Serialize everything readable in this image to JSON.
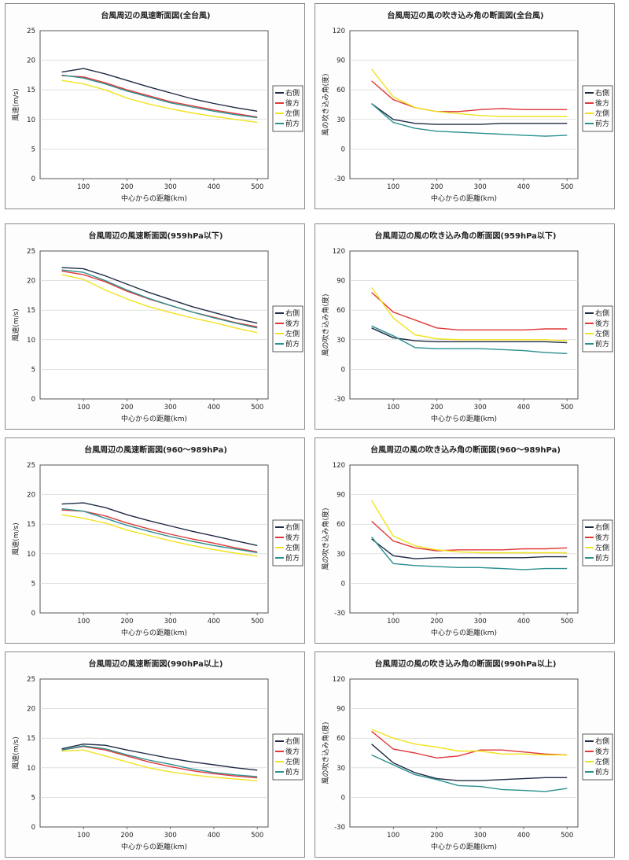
{
  "colors": {
    "right_side": "#1f2a44",
    "rear": "#e03838",
    "left_side": "#f2e21e",
    "front": "#2a8f8f"
  },
  "chart_data": [
    {
      "type": "line",
      "title": "台風周辺の風速断面図(全台風)",
      "xlabel": "中心からの距離(km)",
      "ylabel": "風速(m/s)",
      "ylim": [
        0,
        25
      ],
      "yticks": [
        0,
        5,
        10,
        15,
        20,
        25
      ],
      "xlim": [
        0,
        525
      ],
      "xticks": [
        100,
        200,
        300,
        400,
        500
      ],
      "legend_position": "right",
      "series": [
        {
          "name": "右側",
          "color": "#1f2a44",
          "x": [
            50,
            100,
            150,
            200,
            250,
            300,
            350,
            400,
            450,
            500
          ],
          "values": [
            18.0,
            18.6,
            17.7,
            16.6,
            15.5,
            14.5,
            13.5,
            12.7,
            12.0,
            11.4
          ]
        },
        {
          "name": "後方",
          "color": "#e03838",
          "x": [
            50,
            100,
            150,
            200,
            250,
            300,
            350,
            400,
            450,
            500
          ],
          "values": [
            17.4,
            17.2,
            16.2,
            15.0,
            14.0,
            13.0,
            12.3,
            11.6,
            11.0,
            10.4
          ]
        },
        {
          "name": "左側",
          "color": "#f2e21e",
          "x": [
            50,
            100,
            150,
            200,
            250,
            300,
            350,
            400,
            450,
            500
          ],
          "values": [
            16.6,
            16.0,
            15.0,
            13.6,
            12.6,
            11.8,
            11.1,
            10.5,
            10.0,
            9.5
          ]
        },
        {
          "name": "前方",
          "color": "#2a8f8f",
          "x": [
            50,
            100,
            150,
            200,
            250,
            300,
            350,
            400,
            450,
            500
          ],
          "values": [
            17.5,
            17.0,
            16.0,
            14.8,
            13.8,
            12.8,
            12.1,
            11.4,
            10.8,
            10.3
          ]
        }
      ]
    },
    {
      "type": "line",
      "title": "台風周辺の風の吹き込み角の断面図(全台風)",
      "xlabel": "中心からの距離(km)",
      "ylabel": "風の吹き込み角(度)",
      "ylim": [
        -30,
        120
      ],
      "yticks": [
        -30,
        0,
        30,
        60,
        90,
        120
      ],
      "xlim": [
        0,
        525
      ],
      "xticks": [
        100,
        200,
        300,
        400,
        500
      ],
      "legend_position": "right",
      "series": [
        {
          "name": "右側",
          "color": "#1f2a44",
          "x": [
            50,
            100,
            150,
            200,
            250,
            300,
            350,
            400,
            450,
            500
          ],
          "values": [
            46,
            30,
            26,
            25,
            25,
            25,
            26,
            26,
            26,
            26
          ]
        },
        {
          "name": "後方",
          "color": "#e03838",
          "x": [
            50,
            100,
            150,
            200,
            250,
            300,
            350,
            400,
            450,
            500
          ],
          "values": [
            69,
            50,
            42,
            38,
            38,
            40,
            41,
            40,
            40,
            40
          ]
        },
        {
          "name": "左側",
          "color": "#f2e21e",
          "x": [
            50,
            100,
            150,
            200,
            250,
            300,
            350,
            400,
            450,
            500
          ],
          "values": [
            81,
            53,
            42,
            38,
            36,
            34,
            33,
            33,
            33,
            33
          ]
        },
        {
          "name": "前方",
          "color": "#2a8f8f",
          "x": [
            50,
            100,
            150,
            200,
            250,
            300,
            350,
            400,
            450,
            500
          ],
          "values": [
            46,
            27,
            21,
            18,
            17,
            16,
            15,
            14,
            13,
            14
          ]
        }
      ]
    },
    {
      "type": "line",
      "title": "台風周辺の風速断面図(959hPa以下)",
      "xlabel": "中心からの距離(km)",
      "ylabel": "風速(m/s)",
      "ylim": [
        0,
        25
      ],
      "yticks": [
        0,
        5,
        10,
        15,
        20,
        25
      ],
      "xlim": [
        0,
        525
      ],
      "xticks": [
        100,
        200,
        300,
        400,
        500
      ],
      "legend_position": "right",
      "series": [
        {
          "name": "右側",
          "color": "#1f2a44",
          "x": [
            50,
            100,
            150,
            200,
            250,
            300,
            350,
            400,
            450,
            500
          ],
          "values": [
            22.2,
            22.0,
            20.8,
            19.4,
            18.0,
            16.8,
            15.6,
            14.6,
            13.6,
            12.8
          ]
        },
        {
          "name": "後方",
          "color": "#e03838",
          "x": [
            50,
            100,
            150,
            200,
            250,
            300,
            350,
            400,
            450,
            500
          ],
          "values": [
            21.6,
            21.0,
            19.8,
            18.2,
            16.9,
            15.8,
            14.7,
            13.8,
            12.9,
            12.2
          ]
        },
        {
          "name": "左側",
          "color": "#f2e21e",
          "x": [
            50,
            100,
            150,
            200,
            250,
            300,
            350,
            400,
            450,
            500
          ],
          "values": [
            21.0,
            20.2,
            18.4,
            16.9,
            15.6,
            14.6,
            13.7,
            12.9,
            12.0,
            11.2
          ]
        },
        {
          "name": "前方",
          "color": "#2a8f8f",
          "x": [
            50,
            100,
            150,
            200,
            250,
            300,
            350,
            400,
            450,
            500
          ],
          "values": [
            21.8,
            21.4,
            20.0,
            18.4,
            17.0,
            15.8,
            14.7,
            13.7,
            12.8,
            12.0
          ]
        }
      ]
    },
    {
      "type": "line",
      "title": "台風周辺の風の吹き込み角の断面図(959hPa以下)",
      "xlabel": "中心からの距離(km)",
      "ylabel": "風の吹き込み角(度)",
      "ylim": [
        -30,
        120
      ],
      "yticks": [
        -30,
        0,
        30,
        60,
        90,
        120
      ],
      "xlim": [
        0,
        525
      ],
      "xticks": [
        100,
        200,
        300,
        400,
        500
      ],
      "legend_position": "right",
      "series": [
        {
          "name": "右側",
          "color": "#1f2a44",
          "x": [
            50,
            100,
            150,
            200,
            250,
            300,
            350,
            400,
            450,
            500
          ],
          "values": [
            42,
            32,
            29,
            28,
            28,
            28,
            28,
            28,
            28,
            27
          ]
        },
        {
          "name": "後方",
          "color": "#e03838",
          "x": [
            50,
            100,
            150,
            200,
            250,
            300,
            350,
            400,
            450,
            500
          ],
          "values": [
            78,
            58,
            50,
            42,
            40,
            40,
            40,
            40,
            41,
            41
          ]
        },
        {
          "name": "左側",
          "color": "#f2e21e",
          "x": [
            50,
            100,
            150,
            200,
            250,
            300,
            350,
            400,
            450,
            500
          ],
          "values": [
            83,
            52,
            35,
            31,
            30,
            30,
            30,
            30,
            30,
            29
          ]
        },
        {
          "name": "前方",
          "color": "#2a8f8f",
          "x": [
            50,
            100,
            150,
            200,
            250,
            300,
            350,
            400,
            450,
            500
          ],
          "values": [
            44,
            34,
            22,
            21,
            21,
            21,
            20,
            19,
            17,
            16
          ]
        }
      ]
    },
    {
      "type": "line",
      "title": "台風周辺の風速断面図(960〜989hPa)",
      "xlabel": "中心からの距離(km)",
      "ylabel": "風速(m/s)",
      "ylim": [
        0,
        25
      ],
      "yticks": [
        0,
        5,
        10,
        15,
        20,
        25
      ],
      "xlim": [
        0,
        525
      ],
      "xticks": [
        100,
        200,
        300,
        400,
        500
      ],
      "legend_position": "right",
      "series": [
        {
          "name": "右側",
          "color": "#1f2a44",
          "x": [
            50,
            100,
            150,
            200,
            250,
            300,
            350,
            400,
            450,
            500
          ],
          "values": [
            18.4,
            18.6,
            17.8,
            16.6,
            15.6,
            14.7,
            13.8,
            13.0,
            12.2,
            11.4
          ]
        },
        {
          "name": "後方",
          "color": "#e03838",
          "x": [
            50,
            100,
            150,
            200,
            250,
            300,
            350,
            400,
            450,
            500
          ],
          "values": [
            17.4,
            17.2,
            16.4,
            15.2,
            14.2,
            13.3,
            12.5,
            11.8,
            11.0,
            10.3
          ]
        },
        {
          "name": "左側",
          "color": "#f2e21e",
          "x": [
            50,
            100,
            150,
            200,
            250,
            300,
            350,
            400,
            450,
            500
          ],
          "values": [
            16.6,
            16.0,
            15.2,
            14.0,
            13.1,
            12.2,
            11.4,
            10.7,
            10.1,
            9.6
          ]
        },
        {
          "name": "前方",
          "color": "#2a8f8f",
          "x": [
            50,
            100,
            150,
            200,
            250,
            300,
            350,
            400,
            450,
            500
          ],
          "values": [
            17.6,
            17.2,
            16.0,
            14.8,
            13.8,
            12.9,
            12.1,
            11.4,
            10.8,
            10.2
          ]
        }
      ]
    },
    {
      "type": "line",
      "title": "台風周辺の風の吹き込み角の断面図(960〜989hPa)",
      "xlabel": "中心からの距離(km)",
      "ylabel": "風の吹き込み角(度)",
      "ylim": [
        -30,
        120
      ],
      "yticks": [
        -30,
        0,
        30,
        60,
        90,
        120
      ],
      "xlim": [
        0,
        525
      ],
      "xticks": [
        100,
        200,
        300,
        400,
        500
      ],
      "legend_position": "right",
      "series": [
        {
          "name": "右側",
          "color": "#1f2a44",
          "x": [
            50,
            100,
            150,
            200,
            250,
            300,
            350,
            400,
            450,
            500
          ],
          "values": [
            45,
            28,
            25,
            26,
            26,
            26,
            26,
            26,
            27,
            27
          ]
        },
        {
          "name": "後方",
          "color": "#e03838",
          "x": [
            50,
            100,
            150,
            200,
            250,
            300,
            350,
            400,
            450,
            500
          ],
          "values": [
            63,
            43,
            36,
            33,
            34,
            34,
            34,
            35,
            35,
            36
          ]
        },
        {
          "name": "左側",
          "color": "#f2e21e",
          "x": [
            50,
            100,
            150,
            200,
            250,
            300,
            350,
            400,
            450,
            500
          ],
          "values": [
            84,
            48,
            38,
            34,
            32,
            31,
            31,
            31,
            31,
            31
          ]
        },
        {
          "name": "前方",
          "color": "#2a8f8f",
          "x": [
            50,
            100,
            150,
            200,
            250,
            300,
            350,
            400,
            450,
            500
          ],
          "values": [
            47,
            20,
            18,
            17,
            16,
            16,
            15,
            14,
            15,
            15
          ]
        }
      ]
    },
    {
      "type": "line",
      "title": "台風周辺の風速断面図(990hPa以上)",
      "xlabel": "中心からの距離(km)",
      "ylabel": "風速(m/s)",
      "ylim": [
        0,
        25
      ],
      "yticks": [
        0,
        5,
        10,
        15,
        20,
        25
      ],
      "xlim": [
        0,
        525
      ],
      "xticks": [
        100,
        200,
        300,
        400,
        500
      ],
      "legend_position": "right",
      "series": [
        {
          "name": "右側",
          "color": "#1f2a44",
          "x": [
            50,
            100,
            150,
            200,
            250,
            300,
            350,
            400,
            450,
            500
          ],
          "values": [
            13.2,
            14.0,
            13.8,
            13.0,
            12.3,
            11.6,
            11.0,
            10.5,
            10.0,
            9.6
          ]
        },
        {
          "name": "後方",
          "color": "#e03838",
          "x": [
            50,
            100,
            150,
            200,
            250,
            300,
            350,
            400,
            450,
            500
          ],
          "values": [
            13.0,
            13.6,
            13.0,
            12.0,
            11.0,
            10.2,
            9.5,
            9.0,
            8.6,
            8.3
          ]
        },
        {
          "name": "左側",
          "color": "#f2e21e",
          "x": [
            50,
            100,
            150,
            200,
            250,
            300,
            350,
            400,
            450,
            500
          ],
          "values": [
            12.8,
            13.0,
            12.0,
            11.0,
            10.0,
            9.3,
            8.8,
            8.4,
            8.1,
            7.8
          ]
        },
        {
          "name": "前方",
          "color": "#2a8f8f",
          "x": [
            50,
            100,
            150,
            200,
            250,
            300,
            350,
            400,
            450,
            500
          ],
          "values": [
            13.0,
            13.7,
            13.2,
            12.2,
            11.3,
            10.6,
            9.8,
            9.2,
            8.8,
            8.5
          ]
        }
      ]
    },
    {
      "type": "line",
      "title": "台風周辺の風の吹き込み角の断面図(990hPa以上)",
      "xlabel": "中心からの距離(km)",
      "ylabel": "風の吹き込み角(度)",
      "ylim": [
        -30,
        120
      ],
      "yticks": [
        -30,
        0,
        30,
        60,
        90,
        120
      ],
      "xlim": [
        0,
        525
      ],
      "xticks": [
        100,
        200,
        300,
        400,
        500
      ],
      "legend_position": "right",
      "series": [
        {
          "name": "右側",
          "color": "#1f2a44",
          "x": [
            50,
            100,
            150,
            200,
            250,
            300,
            350,
            400,
            450,
            500
          ],
          "values": [
            54,
            35,
            25,
            19,
            17,
            17,
            18,
            19,
            20,
            20
          ]
        },
        {
          "name": "後方",
          "color": "#e03838",
          "x": [
            50,
            100,
            150,
            200,
            250,
            300,
            350,
            400,
            450,
            500
          ],
          "values": [
            67,
            49,
            45,
            40,
            42,
            48,
            48,
            46,
            44,
            43
          ]
        },
        {
          "name": "左側",
          "color": "#f2e21e",
          "x": [
            50,
            100,
            150,
            200,
            250,
            300,
            350,
            400,
            450,
            500
          ],
          "values": [
            69,
            60,
            54,
            51,
            47,
            47,
            44,
            44,
            43,
            43
          ]
        },
        {
          "name": "前方",
          "color": "#2a8f8f",
          "x": [
            50,
            100,
            150,
            200,
            250,
            300,
            350,
            400,
            450,
            500
          ],
          "values": [
            43,
            33,
            23,
            18,
            12,
            11,
            8,
            7,
            6,
            9
          ]
        }
      ]
    }
  ]
}
